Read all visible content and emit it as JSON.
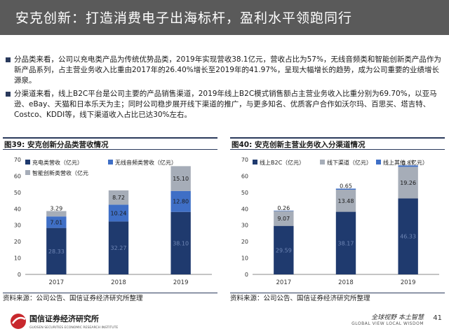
{
  "header": {
    "title": "安克创新：打造消费电子出海标杆，盈利水平领跑同行"
  },
  "bullets": [
    "分品类来看，公司以充电类产品为传统优势品类，2019年实现营收38.1亿元，营收占比为57%，无线音频类和智能创新类产品作为新产品系列，占主营业务收入比重由2017年的26.40%增长至2019年的41.97%，呈现大幅增长的趋势，成为公司重要的业绩增长源泉。",
    "分渠道来看，线上B2C平台是公司主要的产品销售渠道，2019年线上B2C模式销售额占主营业务收入比重分别为69.70%，以亚马逊、eBay、天猫和日本乐天为主；同时公司稳步展开线下渠道的推广，与更多知名、优质客户合作如沃尔玛、百思买、塔吉特、Costco、KDDI等，线下渠道收入占比已达30%左右。"
  ],
  "panels": {
    "left_title": "图39:  安克创新分品类营收情况",
    "right_title": "图40:  安克创新主营业务收入分渠道情况",
    "left_source": "资料来源：公司公告、国信证券经济研究所整理",
    "right_source": "资料来源：公司公告、国信证券经济研究所整理"
  },
  "footer": {
    "logo_text": "国信证券经济研究所",
    "logo_sub": "GUOSEN SECURITIES ECONOMIC RESEARCH INSTITUTE",
    "slogan": "全球视野 本土智慧",
    "slogan_en": "GLOBAL VIEW   LOCAL WISDOM",
    "page": "41"
  },
  "colors": {
    "navy": "#1f3a6e",
    "blue": "#3f6fc6",
    "gray": "#a6adb8",
    "title_bg": "#5a5a5a"
  },
  "chart_data": [
    {
      "type": "bar",
      "stacked": true,
      "title": "",
      "categories": [
        "2017",
        "2018",
        "2019"
      ],
      "ylim": [
        0,
        70
      ],
      "yticks": [
        0,
        10,
        20,
        30,
        40,
        50,
        60,
        70
      ],
      "legend_placement": "top",
      "series": [
        {
          "name": "充电类营收（亿元）",
          "values": [
            28.33,
            32.27,
            38.1
          ],
          "color": "#1f3a6e"
        },
        {
          "name": "无线音频类营收（亿元）",
          "values": [
            7.01,
            10.24,
            12.8
          ],
          "color": "#3f6fc6"
        },
        {
          "name": "智能创新类营收（亿元",
          "values": [
            3.29,
            8.72,
            15.1
          ],
          "color": "#a6adb8"
        }
      ]
    },
    {
      "type": "bar",
      "stacked": true,
      "title": "",
      "categories": [
        "2017",
        "2018",
        "2019"
      ],
      "ylim": [
        0,
        70
      ],
      "yticks": [
        0,
        10,
        20,
        30,
        40,
        50,
        60,
        70
      ],
      "legend_placement": "top",
      "series": [
        {
          "name": "线上B2C（亿元）",
          "values": [
            29.59,
            38.17,
            46.33
          ],
          "color": "#1f3a6e"
        },
        {
          "name": "线下渠道（亿元）",
          "values": [
            9.07,
            13.48,
            19.26
          ],
          "color": "#a6adb8"
        },
        {
          "name": "线上其他（亿元）",
          "values": [
            0.26,
            0.65,
            0.87
          ],
          "color": "#3f6fc6"
        }
      ]
    }
  ]
}
